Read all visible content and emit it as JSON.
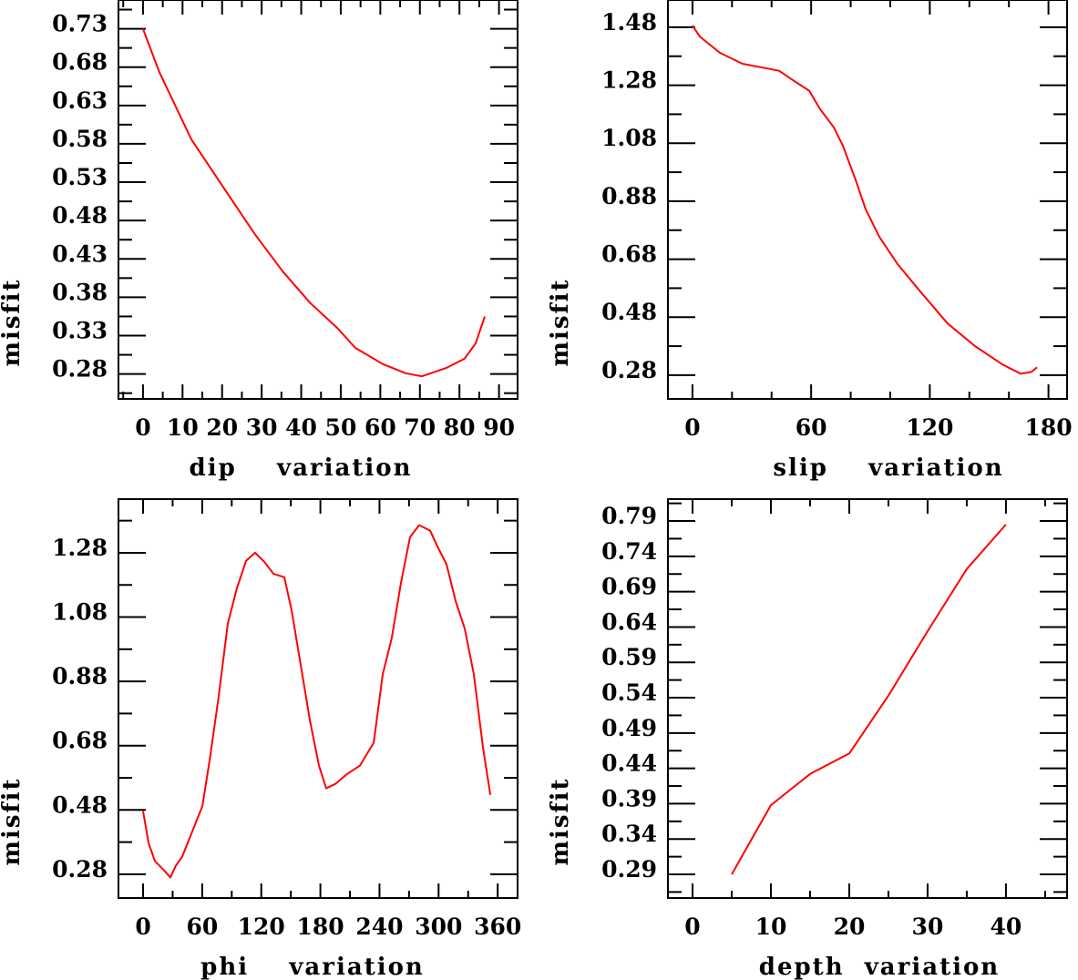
{
  "colors": {
    "line": "#ff0000",
    "axes": "#000000",
    "background": "#ffffff"
  },
  "chart_data": [
    {
      "type": "line",
      "title": "",
      "xlabel": "dip    variation",
      "ylabel": "misfit",
      "xlim": [
        -6.2,
        94.7
      ],
      "ylim": [
        0.2475,
        0.7675
      ],
      "xticks": [
        0,
        10,
        20,
        30,
        40,
        50,
        60,
        70,
        80,
        90
      ],
      "xtick_labels": [
        "0",
        "10",
        "20",
        "30",
        "40",
        "50",
        "60",
        "70",
        "80",
        "90"
      ],
      "xminor": 5,
      "yticks": [
        0.28,
        0.33,
        0.38,
        0.43,
        0.48,
        0.53,
        0.58,
        0.63,
        0.68,
        0.73
      ],
      "ytick_labels": [
        "0.28",
        "0.33",
        "0.38",
        "0.43",
        "0.48",
        "0.53",
        "0.58",
        "0.63",
        "0.68",
        "0.73"
      ],
      "yminor": 0.025,
      "grid": false,
      "series": [
        {
          "name": "dip",
          "x": [
            0,
            4.1,
            12.2,
            21.4,
            28.3,
            35.3,
            42.2,
            49.1,
            53.7,
            60.6,
            66.4,
            70.5,
            76.7,
            81.3,
            84.1,
            86.4
          ],
          "y": [
            0.73,
            0.674,
            0.586,
            0.515,
            0.462,
            0.414,
            0.373,
            0.34,
            0.314,
            0.293,
            0.281,
            0.277,
            0.288,
            0.3,
            0.32,
            0.355
          ]
        }
      ]
    },
    {
      "type": "line",
      "title": "",
      "xlabel": "slip    variation",
      "ylabel": "misfit",
      "xlim": [
        -12.4,
        189.4
      ],
      "ylim": [
        0.198,
        1.574
      ],
      "xticks": [
        0,
        60,
        120,
        180
      ],
      "xtick_labels": [
        "0",
        "60",
        "120",
        "180"
      ],
      "xminor": 20,
      "yticks": [
        0.28,
        0.48,
        0.68,
        0.88,
        1.08,
        1.28,
        1.48
      ],
      "ytick_labels": [
        "0.28",
        "0.48",
        "0.68",
        "0.88",
        "1.08",
        "1.28",
        "1.48"
      ],
      "yminor": 0.1,
      "grid": false,
      "series": [
        {
          "name": "slip",
          "x": [
            0,
            3.7,
            13.8,
            25.3,
            36.9,
            43.8,
            50.7,
            59,
            64.5,
            71.4,
            76,
            82.9,
            87.6,
            94.5,
            103.7,
            115.2,
            129,
            142.9,
            156.7,
            165.9,
            171.4,
            174.2
          ],
          "y": [
            1.486,
            1.448,
            1.392,
            1.354,
            1.339,
            1.33,
            1.298,
            1.261,
            1.198,
            1.135,
            1.072,
            0.946,
            0.852,
            0.757,
            0.663,
            0.568,
            0.458,
            0.38,
            0.317,
            0.285,
            0.291,
            0.307
          ]
        }
      ]
    },
    {
      "type": "line",
      "title": "",
      "xlabel": "phi    variation",
      "ylabel": "misfit",
      "xlim": [
        -25,
        380.2
      ],
      "ylim": [
        0.206,
        1.447
      ],
      "xticks": [
        0,
        60,
        120,
        180,
        240,
        300,
        360
      ],
      "xtick_labels": [
        "0",
        "60",
        "120",
        "180",
        "240",
        "300",
        "360"
      ],
      "xminor": 30,
      "yticks": [
        0.28,
        0.48,
        0.68,
        0.88,
        1.08,
        1.28
      ],
      "ytick_labels": [
        "0.28",
        "0.48",
        "0.68",
        "0.88",
        "1.08",
        "1.28"
      ],
      "yminor": 0.1,
      "grid": false,
      "series": [
        {
          "name": "phi",
          "x": [
            0,
            5.5,
            12,
            21.3,
            27.7,
            33.3,
            39.8,
            49,
            60.1,
            67.5,
            76.7,
            86,
            95.3,
            104.5,
            113.7,
            123,
            132.3,
            143.4,
            150.8,
            160,
            169.3,
            178.5,
            185.9,
            195.2,
            206.3,
            220.2,
            234.1,
            243.3,
            252.5,
            261.8,
            271,
            280.3,
            291.4,
            298.8,
            308,
            317.3,
            326.5,
            335.8,
            345,
            352.5
          ],
          "y": [
            0.477,
            0.377,
            0.321,
            0.292,
            0.27,
            0.307,
            0.335,
            0.406,
            0.491,
            0.633,
            0.832,
            1.06,
            1.17,
            1.255,
            1.28,
            1.252,
            1.215,
            1.204,
            1.101,
            0.931,
            0.76,
            0.618,
            0.547,
            0.561,
            0.59,
            0.618,
            0.689,
            0.902,
            1.016,
            1.186,
            1.329,
            1.366,
            1.349,
            1.3,
            1.244,
            1.13,
            1.044,
            0.902,
            0.675,
            0.527
          ]
        }
      ]
    },
    {
      "type": "line",
      "title": "",
      "xlabel": "depth  variation",
      "ylabel": "misfit",
      "xlim": [
        -3.14,
        47.8
      ],
      "ylim": [
        0.2565,
        0.821
      ],
      "xticks": [
        0,
        10,
        20,
        30,
        40
      ],
      "xtick_labels": [
        "0",
        "10",
        "20",
        "30",
        "40"
      ],
      "xminor": 5,
      "yticks": [
        0.29,
        0.34,
        0.39,
        0.44,
        0.49,
        0.54,
        0.59,
        0.64,
        0.69,
        0.74,
        0.79
      ],
      "ytick_labels": [
        "0.29",
        "0.34",
        "0.39",
        "0.44",
        "0.49",
        "0.54",
        "0.59",
        "0.64",
        "0.69",
        "0.74",
        "0.79"
      ],
      "yminor": 0.025,
      "grid": false,
      "series": [
        {
          "name": "depth",
          "x": [
            5,
            10,
            15,
            20,
            25,
            30,
            35,
            40
          ],
          "y": [
            0.29,
            0.388,
            0.432,
            0.461,
            0.543,
            0.634,
            0.722,
            0.785
          ]
        }
      ]
    }
  ]
}
